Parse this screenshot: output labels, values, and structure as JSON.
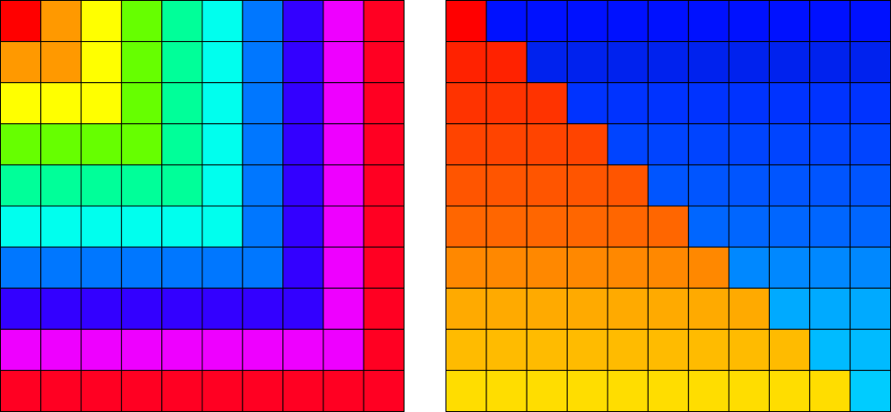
{
  "left_grid": {
    "ring_colors": [
      "#ff0000",
      "#ff9900",
      "#ffff00",
      "#66ff00",
      "#00ff99",
      "#00ffee",
      "#0077ff",
      "#3300ff",
      "#ee00ff",
      "#ff0022"
    ]
  },
  "right_grid": {
    "lower_row_colors": [
      "#ff0000",
      "#ff2200",
      "#ff3300",
      "#ff4400",
      "#ff5500",
      "#ff6600",
      "#ff8800",
      "#ffaa00",
      "#ffbb00",
      "#ffdd00"
    ],
    "upper_row_colors": [
      "#0011ff",
      "#0022ee",
      "#0033ff",
      "#0044ff",
      "#0055ff",
      "#0066ff",
      "#0088ff",
      "#00aaff",
      "#00bbff",
      "#00ccff"
    ]
  }
}
